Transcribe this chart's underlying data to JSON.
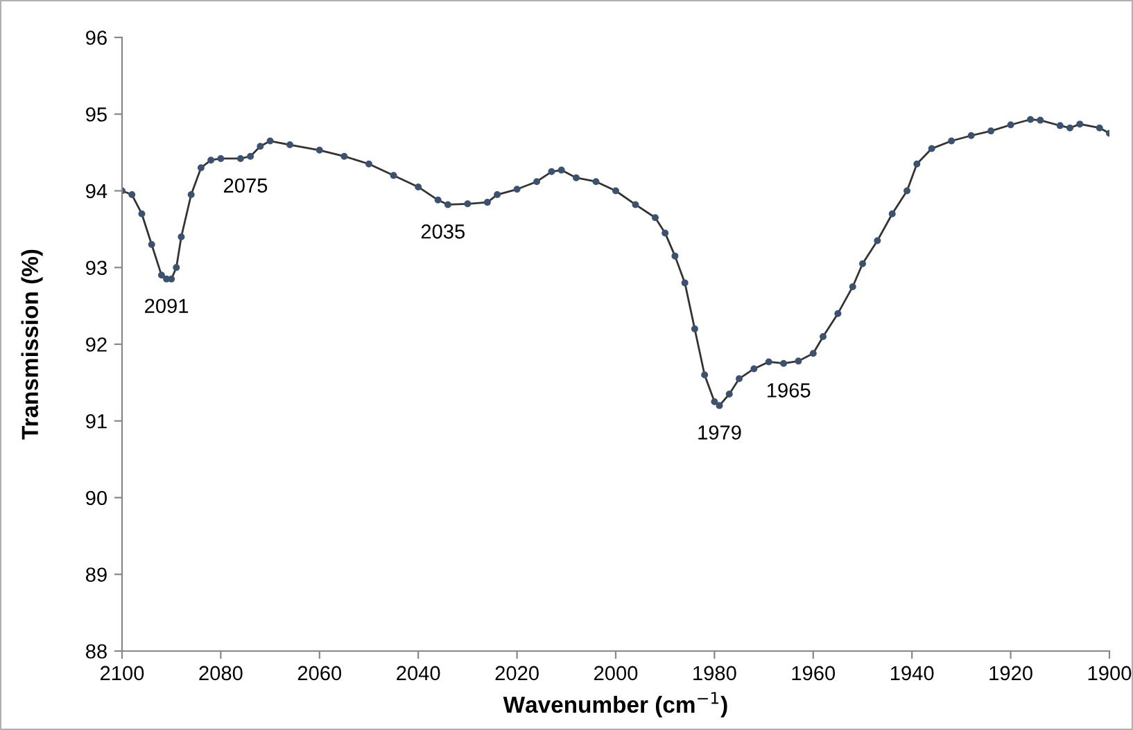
{
  "chart_data": {
    "type": "line",
    "xlabel": "Wavenumber (cm$^{−1}$)",
    "ylabel": "Transmission (%)",
    "xlim": [
      2100,
      1900
    ],
    "xticks": [
      2100,
      2080,
      2060,
      2040,
      2020,
      2000,
      1980,
      1960,
      1940,
      1920,
      1900
    ],
    "ylim": [
      88,
      96
    ],
    "yticks": [
      88,
      89,
      90,
      91,
      92,
      93,
      94,
      95,
      96
    ],
    "grid": false,
    "legend": false,
    "marker": "circle",
    "line_style": "solid",
    "series": [
      {
        "color": "#3b5270",
        "x": [
          2100,
          2098,
          2096,
          2094,
          2092,
          2091,
          2090,
          2089,
          2088,
          2086,
          2084,
          2082,
          2080,
          2076,
          2074,
          2072,
          2070,
          2066,
          2060,
          2055,
          2050,
          2045,
          2040,
          2036,
          2034,
          2030,
          2026,
          2024,
          2020,
          2016,
          2013,
          2011,
          2008,
          2004,
          2000,
          1996,
          1992,
          1990,
          1988,
          1986,
          1984,
          1982,
          1980,
          1979,
          1977,
          1975,
          1972,
          1969,
          1966,
          1963,
          1960,
          1958,
          1955,
          1952,
          1950,
          1947,
          1944,
          1941,
          1939,
          1936,
          1932,
          1928,
          1924,
          1920,
          1916,
          1914,
          1910,
          1908,
          1906,
          1902,
          1900
        ],
        "values": [
          94.0,
          93.95,
          93.7,
          93.3,
          92.9,
          92.85,
          92.85,
          93.0,
          93.4,
          93.95,
          94.3,
          94.4,
          94.42,
          94.42,
          94.45,
          94.58,
          94.65,
          94.6,
          94.53,
          94.45,
          94.35,
          94.2,
          94.05,
          93.88,
          93.82,
          93.83,
          93.85,
          93.95,
          94.02,
          94.12,
          94.25,
          94.27,
          94.17,
          94.12,
          94.0,
          93.82,
          93.65,
          93.45,
          93.15,
          92.8,
          92.2,
          91.6,
          91.25,
          91.2,
          91.35,
          91.55,
          91.68,
          91.77,
          91.75,
          91.78,
          91.88,
          92.1,
          92.4,
          92.75,
          93.05,
          93.35,
          93.7,
          94.0,
          94.35,
          94.55,
          94.65,
          94.72,
          94.78,
          94.86,
          94.93,
          94.92,
          94.85,
          94.82,
          94.87,
          94.82,
          94.75
        ]
      }
    ],
    "annotations": [
      {
        "text": "2091",
        "x": 2091,
        "y": 92.85
      },
      {
        "text": "2075",
        "x": 2075,
        "y": 94.42
      },
      {
        "text": "2035",
        "x": 2035,
        "y": 93.82
      },
      {
        "text": "1979",
        "x": 1979,
        "y": 91.2
      },
      {
        "text": "1965",
        "x": 1965,
        "y": 91.75
      }
    ]
  }
}
